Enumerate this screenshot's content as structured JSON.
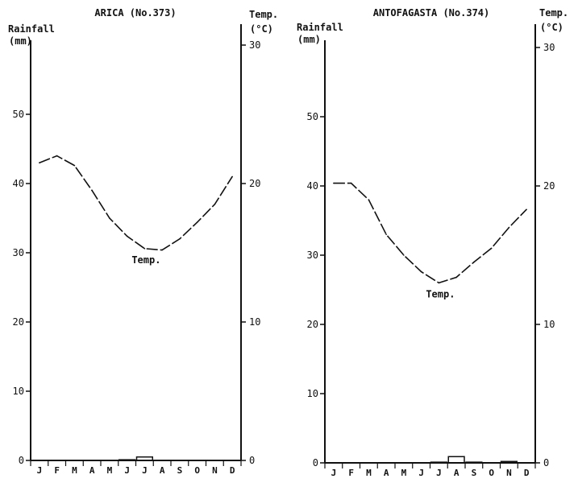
{
  "chart_data": [
    {
      "type": "climograph",
      "title": "ARICA (No.373)",
      "left_axis_label": [
        "Rainfall",
        "(mm)"
      ],
      "right_axis_label": [
        "Temp.",
        "(°C)"
      ],
      "left_ticks": [
        "0",
        "10",
        "20",
        "30",
        "40",
        "50"
      ],
      "right_ticks": [
        "0",
        "10",
        "20",
        "30"
      ],
      "left_ylim": [
        0,
        60
      ],
      "right_ylim": [
        0,
        30
      ],
      "months": [
        "J",
        "F",
        "M",
        "A",
        "M",
        "J",
        "J",
        "A",
        "S",
        "O",
        "N",
        "D"
      ],
      "series": [
        {
          "name": "Temp.",
          "kind": "line",
          "axis": "right",
          "values": [
            21.5,
            22.0,
            21.3,
            19.5,
            17.5,
            16.2,
            15.3,
            15.2,
            16.0,
            17.2,
            18.5,
            20.5
          ]
        },
        {
          "kind": "bar",
          "axis": "left",
          "values": [
            0,
            0,
            0,
            0,
            0,
            0.1,
            0.5,
            0,
            0,
            0,
            0,
            0
          ]
        }
      ],
      "annotation": {
        "text": "Temp.",
        "month_index": 6
      },
      "grid": false
    },
    {
      "type": "climograph",
      "title": "ANTOFAGASTA (No.374)",
      "left_axis_label": [
        "Rainfall",
        "(mm)"
      ],
      "right_axis_label": [
        "Temp.",
        "(°C)"
      ],
      "left_ticks": [
        "0",
        "10",
        "20",
        "30",
        "40",
        "50"
      ],
      "right_ticks": [
        "0",
        "10",
        "20",
        "30"
      ],
      "left_ylim": [
        0,
        60
      ],
      "right_ylim": [
        0,
        30
      ],
      "months": [
        "J",
        "F",
        "M",
        "A",
        "M",
        "J",
        "J",
        "A",
        "S",
        "O",
        "N",
        "D"
      ],
      "series": [
        {
          "name": "Temp.",
          "kind": "line",
          "axis": "right",
          "values": [
            20.2,
            20.2,
            19.0,
            16.5,
            15.0,
            13.8,
            13.0,
            13.4,
            14.5,
            15.5,
            17.0,
            18.3
          ]
        },
        {
          "kind": "bar",
          "axis": "left",
          "values": [
            0,
            0,
            0,
            0,
            0,
            0,
            0.1,
            0.9,
            0.1,
            0,
            0.2,
            0
          ]
        }
      ],
      "annotation": {
        "text": "Temp.",
        "month_index": 6
      },
      "grid": false
    }
  ]
}
